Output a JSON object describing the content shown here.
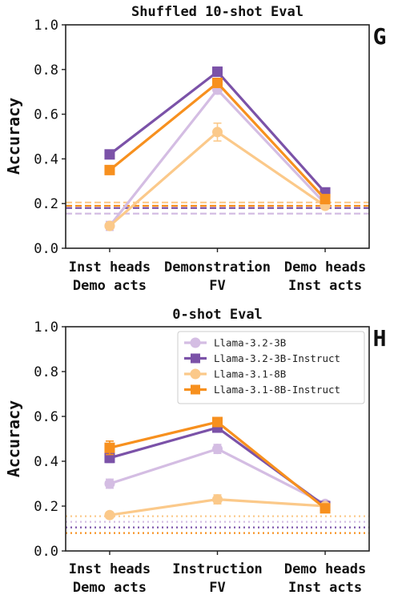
{
  "chart_data": [
    {
      "type": "line",
      "panel_letter": "G",
      "title": "Shuffled 10-shot Eval",
      "xlabel": "",
      "ylabel": "Accuracy",
      "ylim": [
        0.0,
        1.0
      ],
      "yticks": [
        "0.0",
        "0.2",
        "0.4",
        "0.6",
        "0.8",
        "1.0"
      ],
      "categories": [
        {
          "line1": "Inst heads",
          "line2": "Demo acts"
        },
        {
          "line1": "Demonstration",
          "line2": "FV"
        },
        {
          "line1": "Demo heads",
          "line2": "Inst acts"
        }
      ],
      "legend": false,
      "series": [
        {
          "name": "Llama-3.2-3B",
          "color": "#d4bde3",
          "marker": "circle",
          "values": [
            0.1,
            0.71,
            0.2
          ],
          "errors": [
            0.02,
            0.02,
            0.01
          ],
          "baseline": 0.155,
          "baseline_style": "dashed"
        },
        {
          "name": "Llama-3.2-3B-Instruct",
          "color": "#7b52a8",
          "marker": "square",
          "values": [
            0.42,
            0.79,
            0.25
          ],
          "errors": [
            0.01,
            0.02,
            0.01
          ],
          "baseline": 0.18,
          "baseline_style": "dashed"
        },
        {
          "name": "Llama-3.1-8B",
          "color": "#fbc98a",
          "marker": "circle",
          "values": [
            0.1,
            0.52,
            0.19
          ],
          "errors": [
            0.01,
            0.04,
            0.01
          ],
          "baseline": 0.205,
          "baseline_style": "dashed"
        },
        {
          "name": "Llama-3.1-8B-Instruct",
          "color": "#f7901e",
          "marker": "square",
          "values": [
            0.35,
            0.74,
            0.22
          ],
          "errors": [
            0.01,
            0.02,
            0.01
          ],
          "baseline": 0.19,
          "baseline_style": "dashed"
        }
      ]
    },
    {
      "type": "line",
      "panel_letter": "H",
      "title": "0-shot Eval",
      "xlabel": "",
      "ylabel": "Accuracy",
      "ylim": [
        0.0,
        1.0
      ],
      "yticks": [
        "0.0",
        "0.2",
        "0.4",
        "0.6",
        "0.8",
        "1.0"
      ],
      "categories": [
        {
          "line1": "Inst heads",
          "line2": "Demo acts"
        },
        {
          "line1": "Instruction",
          "line2": "FV"
        },
        {
          "line1": "Demo heads",
          "line2": "Inst acts"
        }
      ],
      "legend": true,
      "legend_position": "top-right",
      "series": [
        {
          "name": "Llama-3.2-3B",
          "color": "#d4bde3",
          "marker": "circle",
          "values": [
            0.3,
            0.455,
            0.21
          ],
          "errors": [
            0.02,
            0.02,
            0.01
          ],
          "baseline": 0.13,
          "baseline_style": "dotted"
        },
        {
          "name": "Llama-3.2-3B-Instruct",
          "color": "#7b52a8",
          "marker": "square",
          "values": [
            0.415,
            0.55,
            0.2
          ],
          "errors": [
            0.02,
            0.02,
            0.01
          ],
          "baseline": 0.105,
          "baseline_style": "dotted"
        },
        {
          "name": "Llama-3.1-8B",
          "color": "#fbc98a",
          "marker": "circle",
          "values": [
            0.16,
            0.23,
            0.2
          ],
          "errors": [
            0.01,
            0.02,
            0.01
          ],
          "baseline": 0.155,
          "baseline_style": "dotted"
        },
        {
          "name": "Llama-3.1-8B-Instruct",
          "color": "#f7901e",
          "marker": "square",
          "values": [
            0.46,
            0.575,
            0.19
          ],
          "errors": [
            0.03,
            0.02,
            0.01
          ],
          "baseline": 0.08,
          "baseline_style": "dotted"
        }
      ]
    }
  ]
}
